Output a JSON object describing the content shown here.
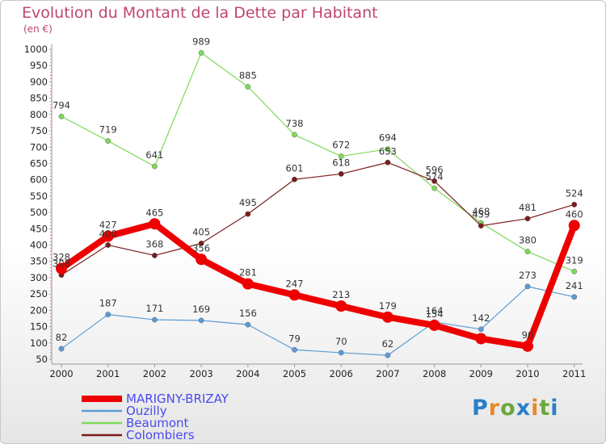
{
  "page": {
    "title": "Evolution du Montant de la Dette par Habitant",
    "unit": "(en €)"
  },
  "logo": {
    "text": "Proxiti",
    "colors": [
      "#2a7fc9",
      "#e8892a",
      "#6aa83b",
      "#2a7fc9",
      "#e8892a",
      "#6aa83b",
      "#2a7fc9"
    ]
  },
  "chart_data": {
    "type": "line",
    "title": "Evolution du Montant de la Dette par Habitant",
    "ylabel": "(en €)",
    "xlabel": "",
    "x": [
      "2000",
      "2001",
      "2002",
      "2003",
      "2004",
      "2005",
      "2006",
      "2007",
      "2008",
      "2009",
      "2010",
      "2011"
    ],
    "ylim": [
      50,
      1000
    ],
    "yticks": [
      "50",
      "100",
      "150",
      "200",
      "250",
      "300",
      "350",
      "400",
      "450",
      "500",
      "550",
      "600",
      "650",
      "700",
      "750",
      "800",
      "850",
      "900",
      "950",
      "1000"
    ],
    "grid": false,
    "legend_position": "bottom-left",
    "series": [
      {
        "name": "MARIGNY-BRIZAY",
        "color": "#ee0000",
        "values": [
          328,
          427,
          465,
          356,
          281,
          247,
          213,
          179,
          154,
          113,
          90,
          460
        ],
        "labels": [
          "328",
          "427",
          "465",
          "356",
          "281",
          "247",
          "213",
          "179",
          "154",
          "",
          "90",
          "460"
        ]
      },
      {
        "name": "Ouzilly",
        "color": "#5b9bd5",
        "values": [
          82,
          187,
          171,
          169,
          156,
          79,
          70,
          62,
          164,
          142,
          273,
          241
        ],
        "labels": [
          "82",
          "187",
          "171",
          "169",
          "156",
          "79",
          "70",
          "62",
          "164",
          "142",
          "273",
          "241"
        ]
      },
      {
        "name": "Beaumont",
        "color": "#7ed957",
        "values": [
          794,
          719,
          641,
          989,
          885,
          738,
          672,
          694,
          574,
          468,
          380,
          319
        ],
        "labels": [
          "794",
          "719",
          "641",
          "989",
          "885",
          "738",
          "672",
          "694",
          "574",
          "468",
          "380",
          "319"
        ]
      },
      {
        "name": "Colombiers",
        "color": "#7a1c1c",
        "values": [
          308,
          400,
          368,
          405,
          495,
          601,
          618,
          653,
          596,
          459,
          481,
          524
        ],
        "labels": [
          "308",
          "400",
          "368",
          "405",
          "495",
          "601",
          "618",
          "653",
          "596",
          "459",
          "481",
          "524"
        ]
      }
    ]
  }
}
